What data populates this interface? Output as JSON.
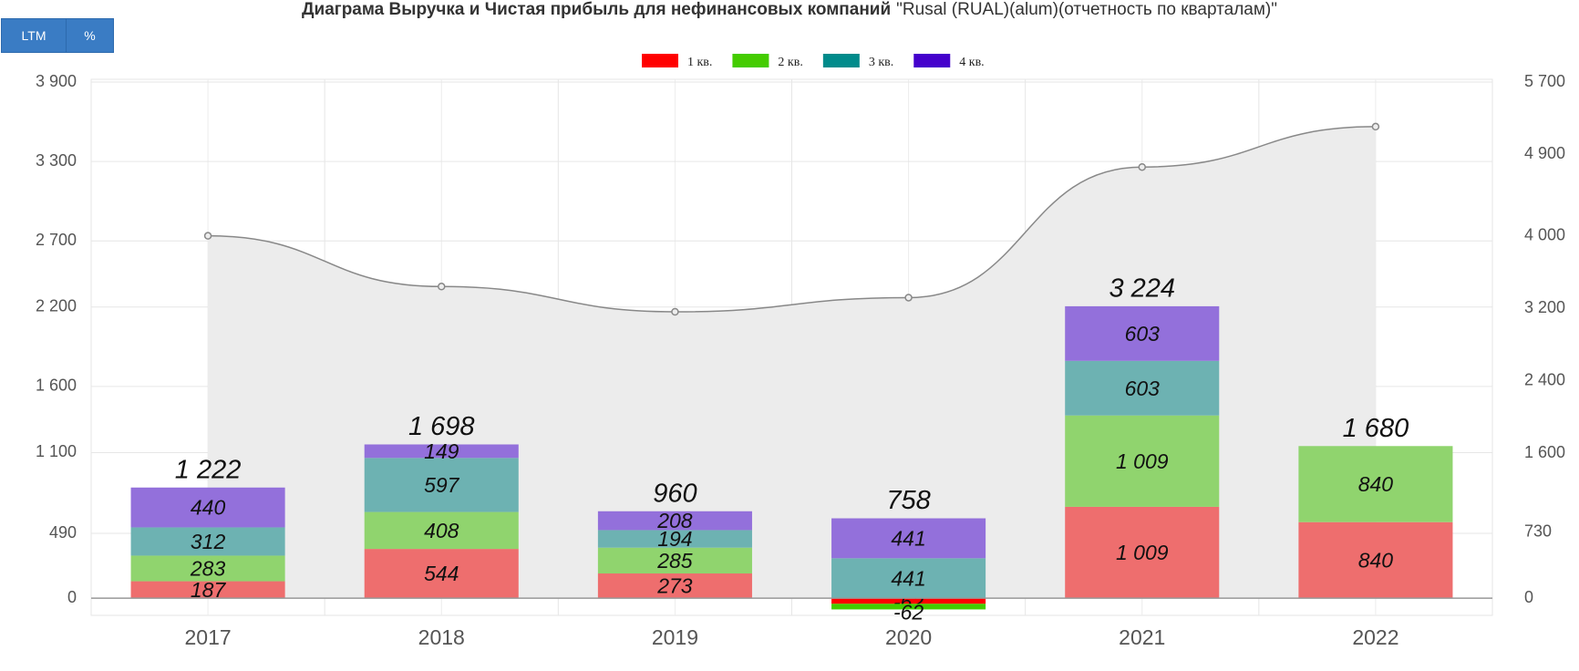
{
  "buttons": [
    "LTM",
    "%"
  ],
  "chart_data": {
    "type": "bar",
    "title": "Диаграма Выручка и Чистая прибыль для нефинансовых компаний",
    "subtitle": "\"Rusal (RUAL)(alum)(отчетность по кварталам)\"",
    "categories": [
      "2017",
      "2018",
      "2019",
      "2020",
      "2021",
      "2022"
    ],
    "series": [
      {
        "name": "1 кв.",
        "color": "#ff0000",
        "fade": "#ee6e6e",
        "axis": "y2",
        "values": [
          187,
          544,
          273,
          -62,
          1009,
          840
        ],
        "value_labels": [
          "187",
          "544",
          "273",
          "-62",
          "1 009",
          "840"
        ]
      },
      {
        "name": "2 кв.",
        "color": "#44cc00",
        "fade": "#90d46e",
        "axis": "y2",
        "values": [
          283,
          408,
          285,
          -62,
          1009,
          840
        ],
        "value_labels": [
          "283",
          "408",
          "285",
          "-62",
          "1 009",
          "840"
        ]
      },
      {
        "name": "3 кв.",
        "color": "#008b8b",
        "fade": "#6db2b2",
        "axis": "y2",
        "values": [
          312,
          597,
          194,
          441,
          603,
          null
        ],
        "value_labels": [
          "312",
          "597",
          "194",
          "441",
          "603",
          null
        ]
      },
      {
        "name": "4 кв.",
        "color": "#4400cc",
        "fade": "#9370db",
        "axis": "y2",
        "values": [
          440,
          149,
          208,
          441,
          603,
          null
        ],
        "value_labels": [
          "440",
          "149",
          "208",
          "441",
          "603",
          null
        ]
      }
    ],
    "totals": [
      1222,
      1698,
      960,
      758,
      3224,
      1680
    ],
    "total_labels": [
      "1 222",
      "1 698",
      "960",
      "758",
      "3 224",
      "1 680"
    ],
    "line": {
      "type": "line",
      "color": "#888888",
      "values": [
        2738,
        2355,
        2164,
        2271,
        3258,
        3563
      ]
    },
    "ylim": [
      -130,
      3900
    ],
    "yticks": [
      0,
      490,
      {
        "value": 1100,
        "label": "1 100"
      },
      {
        "value": 1600,
        "label": "1 600"
      },
      {
        "value": 2200,
        "label": "2 200"
      },
      {
        "value": 2700,
        "label": "2 700"
      },
      {
        "value": 3300,
        "label": "3 300"
      },
      {
        "value": 3900,
        "label": "3 900"
      }
    ],
    "y2lim": [
      -190,
      5700
    ],
    "y2ticks": [
      0,
      730,
      {
        "value": 1600,
        "label": "1 600"
      },
      {
        "value": 2400,
        "label": "2 400"
      },
      {
        "value": 3200,
        "label": "3 200"
      },
      {
        "value": 4000,
        "label": "4 000"
      },
      {
        "value": 4900,
        "label": "4 900"
      },
      {
        "value": 5700,
        "label": "5 700"
      }
    ],
    "grid": true,
    "legend": "top"
  }
}
